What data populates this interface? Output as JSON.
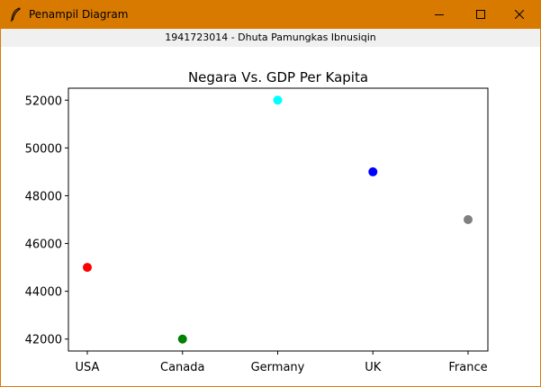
{
  "window": {
    "title": "Penampil Diagram",
    "icon": "feather-icon",
    "accent_color": "#d97a00",
    "controls": [
      "minimize-icon",
      "maximize-icon",
      "close-icon"
    ]
  },
  "subtitle": "1941723014 - Dhuta Pamungkas Ibnusiqin",
  "chart_data": {
    "type": "scatter",
    "title": "Negara Vs. GDP Per Kapita",
    "xlabel": "",
    "ylabel": "",
    "categories": [
      "USA",
      "Canada",
      "Germany",
      "UK",
      "France"
    ],
    "values": [
      45000,
      42000,
      52000,
      49000,
      47000
    ],
    "colors": [
      "#ff0000",
      "#008000",
      "#00ffff",
      "#0000ff",
      "#808080"
    ],
    "ylim": [
      41500,
      52500
    ],
    "yticks": [
      42000,
      44000,
      46000,
      48000,
      50000,
      52000
    ],
    "ytick_labels": [
      "42000",
      "44000",
      "46000",
      "48000",
      "50000",
      "52000"
    ],
    "grid": false,
    "legend": "none"
  }
}
